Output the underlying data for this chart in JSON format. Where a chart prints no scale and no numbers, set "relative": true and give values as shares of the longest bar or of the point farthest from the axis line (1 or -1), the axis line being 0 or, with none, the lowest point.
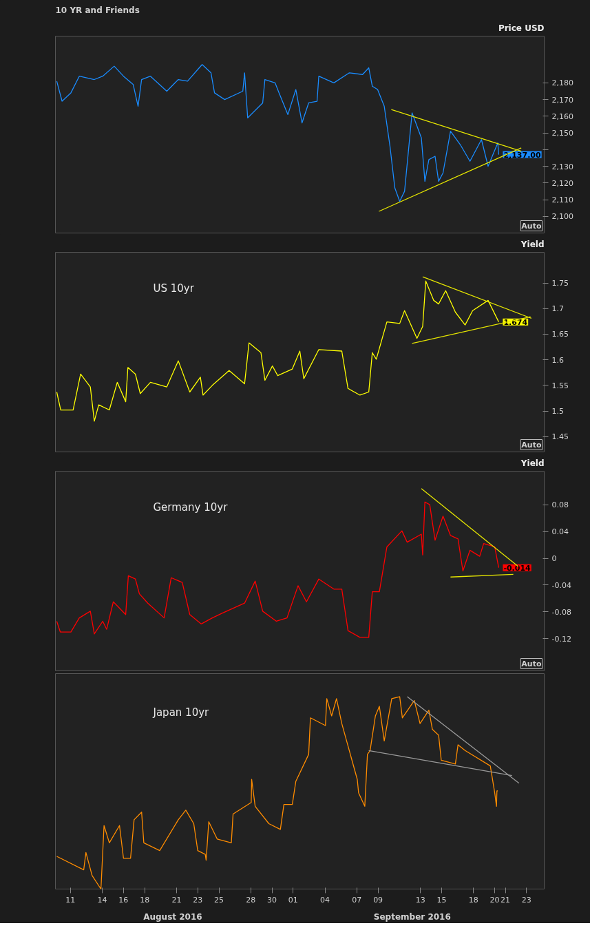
{
  "chart_data": [
    {
      "type": "line",
      "title": "10 YR and Friends",
      "ylabel": "Price USD",
      "xlim": [
        "2016-08-09T14:00",
        "2016-09-24T16:00"
      ],
      "ylim": [
        2090,
        2208
      ],
      "tick_labels": "y",
      "yticks": [
        {
          "value": 2100,
          "label": "2,100"
        },
        {
          "value": 2110,
          "label": "2,110"
        },
        {
          "value": 2120,
          "label": "2,120"
        },
        {
          "value": 2130,
          "label": "2,130"
        },
        {
          "value": 2140,
          "label": null
        },
        {
          "value": 2150,
          "label": "2,150"
        },
        {
          "value": 2160,
          "label": "2,160"
        },
        {
          "value": 2170,
          "label": "2,170"
        },
        {
          "value": 2180,
          "label": "2,180"
        }
      ],
      "annotations": [
        {
          "text": "2,137.00",
          "x": "2016-09-20T09:00",
          "y": 2137
        },
        "Auto"
      ],
      "series": [
        {
          "color": "#1a8cff",
          "x": [
            "2016-08-09T17:00",
            "2016-08-10T05:00",
            "2016-08-11T01:00",
            "2016-08-11T20:00",
            "2016-08-13T06:00",
            "2016-08-14T01:00",
            "2016-08-15T03:00",
            "2016-08-16T00:00",
            "2016-08-16T22:00",
            "2016-08-17T09:00",
            "2016-08-17T17:00",
            "2016-08-18T13:00",
            "2016-08-20T02:00",
            "2016-08-21T04:00",
            "2016-08-22T01:00",
            "2016-08-23T00:00",
            "2016-08-23T10:00",
            "2016-08-24T06:00",
            "2016-08-24T14:00",
            "2016-08-25T13:00",
            "2016-08-27T06:00",
            "2016-08-27T10:00",
            "2016-08-27T17:00",
            "2016-08-29T03:00",
            "2016-08-29T08:00",
            "2016-08-30T07:00",
            "2016-08-30T16:00",
            "2016-08-31T12:00",
            "2016-09-01T06:00",
            "2016-09-01T20:00",
            "2016-09-02T11:00",
            "2016-09-03T06:00",
            "2016-09-03T10:00",
            "2016-09-04T20:00",
            "2016-09-06T07:00",
            "2016-09-07T13:00",
            "2016-09-08T03:00",
            "2016-09-08T11:00",
            "2016-09-08T23:00",
            "2016-09-09T14:00",
            "2016-09-10T03:00",
            "2016-09-10T14:00",
            "2016-09-11T01:00",
            "2016-09-11T12:00",
            "2016-09-12T05:00",
            "2016-09-13T02:00",
            "2016-09-13T10:00",
            "2016-09-13T19:00",
            "2016-09-14T09:00",
            "2016-09-14T17:00",
            "2016-09-15T03:00",
            "2016-09-15T20:00",
            "2016-09-16T18:00",
            "2016-09-17T16:00",
            "2016-09-18T18:00",
            "2016-09-19T09:00",
            "2016-09-20T07:00",
            "2016-09-20T09:00"
          ],
          "values": [
            2181,
            2169,
            2174,
            2184,
            2182,
            2184,
            2190,
            2184,
            2179,
            2166,
            2182,
            2184,
            2175,
            2182,
            2181,
            2188,
            2191,
            2186,
            2174,
            2170,
            2175,
            2186,
            2159,
            2168,
            2182,
            2180,
            2174,
            2161,
            2176,
            2156,
            2168,
            2169,
            2184,
            2180,
            2186,
            2185,
            2189,
            2178,
            2176,
            2166,
            2142,
            2117,
            2109,
            2115,
            2162,
            2147,
            2121,
            2134,
            2136,
            2121,
            2126,
            2151,
            2143,
            2133,
            2146,
            2130,
            2144,
            2137
          ]
        },
        {
          "color": "#e6e600",
          "x": [
            "2016-09-10T06:00",
            "2016-09-22T12:00"
          ],
          "values": [
            2164,
            2139
          ]
        },
        {
          "color": "#e6e600",
          "x": [
            "2016-09-09T02:00",
            "2016-09-22T12:00"
          ],
          "values": [
            2103,
            2141
          ]
        }
      ]
    },
    {
      "type": "line",
      "title": "US 10yr",
      "ylabel": "Yield",
      "xlim": [
        "2016-08-09T14:00",
        "2016-09-24T16:00"
      ],
      "ylim": [
        1.42,
        1.81
      ],
      "tick_labels": "y",
      "yticks": [
        1.45,
        1.5,
        1.55,
        1.6,
        1.65,
        1.7,
        1.75
      ],
      "annotations": [
        {
          "text": "1.674",
          "x": "2016-09-20T09:00",
          "y": 1.674
        },
        "Auto"
      ],
      "series": [
        {
          "color": "#ffff00",
          "x": [
            "2016-08-09T17:00",
            "2016-08-10T02:00",
            "2016-08-11T06:00",
            "2016-08-11T23:00",
            "2016-08-12T21:00",
            "2016-08-13T06:00",
            "2016-08-13T16:00",
            "2016-08-14T16:00",
            "2016-08-15T10:00",
            "2016-08-16T05:00",
            "2016-08-16T10:00",
            "2016-08-17T03:00",
            "2016-08-17T14:00",
            "2016-08-18T13:00",
            "2016-08-20T02:00",
            "2016-08-21T04:00",
            "2016-08-22T06:00",
            "2016-08-23T06:00",
            "2016-08-23T12:00",
            "2016-08-24T09:00",
            "2016-08-25T23:00",
            "2016-08-27T10:00",
            "2016-08-27T20:00",
            "2016-08-28T23:00",
            "2016-08-29T08:00",
            "2016-08-30T01:00",
            "2016-08-30T13:00",
            "2016-08-31T22:00",
            "2016-09-01T15:00",
            "2016-09-02T00:00",
            "2016-09-03T10:00",
            "2016-09-05T14:00",
            "2016-09-06T04:00",
            "2016-09-07T07:00",
            "2016-09-08T03:00",
            "2016-09-08T11:00",
            "2016-09-08T20:00",
            "2016-09-09T20:00",
            "2016-09-11T01:00",
            "2016-09-11T12:00",
            "2016-09-12T16:00",
            "2016-09-13T05:00",
            "2016-09-13T12:00",
            "2016-09-14T06:00",
            "2016-09-14T17:00",
            "2016-09-15T09:00",
            "2016-09-16T07:00",
            "2016-09-17T05:00",
            "2016-09-17T22:00",
            "2016-09-19T09:00",
            "2016-09-20T09:00"
          ],
          "values": [
            1.537,
            1.502,
            1.502,
            1.572,
            1.547,
            1.48,
            1.512,
            1.502,
            1.556,
            1.518,
            1.585,
            1.572,
            1.534,
            1.556,
            1.547,
            1.598,
            1.537,
            1.566,
            1.531,
            1.55,
            1.579,
            1.553,
            1.633,
            1.614,
            1.56,
            1.588,
            1.569,
            1.582,
            1.617,
            1.563,
            1.62,
            1.617,
            1.544,
            1.531,
            1.537,
            1.614,
            1.601,
            1.674,
            1.671,
            1.696,
            1.642,
            1.665,
            1.754,
            1.716,
            1.709,
            1.735,
            1.693,
            1.668,
            1.696,
            1.716,
            1.674
          ]
        },
        {
          "color": "#e6e600",
          "x": [
            "2016-09-13T05:00",
            "2016-09-23T11:00"
          ],
          "values": [
            1.762,
            1.681
          ]
        },
        {
          "color": "#e6e600",
          "x": [
            "2016-09-12T05:00",
            "2016-09-23T09:00"
          ],
          "values": [
            1.632,
            1.684
          ]
        }
      ]
    },
    {
      "type": "line",
      "title": "Germany 10yr",
      "ylabel": "Yield",
      "xlim": [
        "2016-08-09T14:00",
        "2016-09-24T16:00"
      ],
      "ylim": [
        -0.168,
        0.13
      ],
      "tick_labels": "y",
      "yticks": [
        -0.12,
        -0.08,
        -0.04,
        0,
        0.04,
        0.08
      ],
      "annotations": [
        {
          "text": "-0.014",
          "x": "2016-09-20T09:00",
          "y": -0.014
        },
        "Auto"
      ],
      "series": [
        {
          "color": "#ff0000",
          "x": [
            "2016-08-09T17:00",
            "2016-08-10T01:00",
            "2016-08-11T01:00",
            "2016-08-11T20:00",
            "2016-08-12T21:00",
            "2016-08-13T06:00",
            "2016-08-14T01:00",
            "2016-08-14T10:00",
            "2016-08-15T01:00",
            "2016-08-16T05:00",
            "2016-08-16T11:00",
            "2016-08-17T03:00",
            "2016-08-17T12:00",
            "2016-08-18T07:00",
            "2016-08-19T20:00",
            "2016-08-20T12:00",
            "2016-08-21T13:00",
            "2016-08-22T06:00",
            "2016-08-23T08:00",
            "2016-08-24T09:00",
            "2016-08-25T07:00",
            "2016-08-27T10:00",
            "2016-08-28T10:00",
            "2016-08-29T03:00",
            "2016-08-30T10:00",
            "2016-08-31T10:00",
            "2016-09-01T11:00",
            "2016-09-02T06:00",
            "2016-09-03T10:00",
            "2016-09-04T20:00",
            "2016-09-05T14:00",
            "2016-09-06T04:00",
            "2016-09-07T07:00",
            "2016-09-08T03:00",
            "2016-09-08T11:00",
            "2016-09-09T03:00",
            "2016-09-09T20:00",
            "2016-09-11T06:00",
            "2016-09-11T18:00",
            "2016-09-13T02:00",
            "2016-09-13T05:00",
            "2016-09-13T10:00",
            "2016-09-13T21:00",
            "2016-09-14T09:00",
            "2016-09-15T03:00",
            "2016-09-15T20:00",
            "2016-09-16T13:00",
            "2016-09-17T00:00",
            "2016-09-17T16:00",
            "2016-09-18T14:00",
            "2016-09-18T23:00",
            "2016-09-20T00:00",
            "2016-09-20T09:00"
          ],
          "values": [
            -0.094,
            -0.11,
            -0.11,
            -0.089,
            -0.079,
            -0.113,
            -0.094,
            -0.106,
            -0.065,
            -0.084,
            -0.026,
            -0.031,
            -0.053,
            -0.067,
            -0.089,
            -0.029,
            -0.036,
            -0.084,
            -0.098,
            -0.089,
            -0.082,
            -0.067,
            -0.034,
            -0.079,
            -0.094,
            -0.089,
            -0.041,
            -0.065,
            -0.031,
            -0.046,
            -0.046,
            -0.108,
            -0.118,
            -0.118,
            -0.05,
            -0.05,
            0.017,
            0.041,
            0.024,
            0.036,
            0.005,
            0.084,
            0.08,
            0.027,
            0.063,
            0.034,
            0.029,
            -0.019,
            0.012,
            0.003,
            0.022,
            0.017,
            -0.014
          ]
        },
        {
          "color": "#e6e600",
          "x": [
            "2016-09-13T02:00",
            "2016-09-22T05:00"
          ],
          "values": [
            0.104,
            -0.012
          ]
        },
        {
          "color": "#e6e600",
          "x": [
            "2016-09-15T20:00",
            "2016-09-21T18:00"
          ],
          "values": [
            -0.028,
            -0.024
          ]
        }
      ]
    },
    {
      "type": "line",
      "title": "Japan 10yr",
      "relative": true,
      "xlim": [
        "2016-08-09T14:00",
        "2016-09-24T16:00"
      ],
      "tick_labels": "x",
      "xticks": [
        {
          "value": "2016-08-11",
          "label": "11"
        },
        {
          "value": "2016-08-14",
          "label": "14"
        },
        {
          "value": "2016-08-16",
          "label": "16"
        },
        {
          "value": "2016-08-18",
          "label": "18"
        },
        {
          "value": "2016-08-21",
          "label": "21"
        },
        {
          "value": "2016-08-23",
          "label": "23"
        },
        {
          "value": "2016-08-25",
          "label": "25"
        },
        {
          "value": "2016-08-28",
          "label": "28"
        },
        {
          "value": "2016-08-30",
          "label": "30"
        },
        {
          "value": "2016-09-01",
          "label": "01"
        },
        {
          "value": "2016-09-04",
          "label": "04"
        },
        {
          "value": "2016-09-07",
          "label": "07"
        },
        {
          "value": "2016-09-09",
          "label": "09"
        },
        {
          "value": "2016-09-13",
          "label": "13"
        },
        {
          "value": "2016-09-15",
          "label": "15"
        },
        {
          "value": "2016-09-18",
          "label": "18"
        },
        {
          "value": "2016-09-20",
          "label": "20"
        },
        {
          "value": "2016-09-21",
          "label": "21"
        },
        {
          "value": "2016-09-23",
          "label": "23"
        }
      ],
      "annotations": [
        "August 2016",
        "September 2016"
      ],
      "series": [
        {
          "color": "#ff8c00",
          "x": [
            "2016-08-09T17:00",
            "2016-08-12T06:00",
            "2016-08-12T11:00",
            "2016-08-13T01:00",
            "2016-08-13T21:00",
            "2016-08-14T04:00",
            "2016-08-14T16:00",
            "2016-08-15T15:00",
            "2016-08-16T00:00",
            "2016-08-16T16:00",
            "2016-08-17T00:00",
            "2016-08-17T17:00",
            "2016-08-17T22:00",
            "2016-08-19T10:00",
            "2016-08-21T04:00",
            "2016-08-21T21:00",
            "2016-08-22T15:00",
            "2016-08-23T00:00",
            "2016-08-23T17:00",
            "2016-08-23T19:00",
            "2016-08-24T01:00",
            "2016-08-24T20:00",
            "2016-08-26T04:00",
            "2016-08-26T08:00",
            "2016-08-28T01:00",
            "2016-08-28T02:00",
            "2016-08-28T10:00",
            "2016-08-29T17:00",
            "2016-08-30T19:00",
            "2016-08-31T03:00",
            "2016-08-31T22:00",
            "2016-09-01T06:00",
            "2016-09-02T11:00",
            "2016-09-02T15:00",
            "2016-09-04T01:00",
            "2016-09-04T04:00",
            "2016-09-04T15:00",
            "2016-09-05T02:00",
            "2016-09-05T14:00",
            "2016-09-07T01:00",
            "2016-09-07T04:00",
            "2016-09-07T18:00",
            "2016-09-08T00:00",
            "2016-09-08T06:00",
            "2016-09-08T18:00",
            "2016-09-09T03:00",
            "2016-09-09T14:00",
            "2016-09-10T07:00",
            "2016-09-11T01:00",
            "2016-09-11T07:00",
            "2016-09-12T10:00",
            "2016-09-12T23:00",
            "2016-09-13T19:00",
            "2016-09-14T03:00",
            "2016-09-14T17:00",
            "2016-09-14T23:00",
            "2016-09-16T07:00",
            "2016-09-16T13:00",
            "2016-09-17T05:00",
            "2016-09-19T14:00",
            "2016-09-20T00:00",
            "2016-09-20T04:00",
            "2016-09-20T05:00",
            "2016-09-20T07:00"
          ],
          "values": [
            0.17,
            0.1,
            0.19,
            0.07,
            0,
            0.33,
            0.24,
            0.33,
            0.16,
            0.16,
            0.36,
            0.4,
            0.24,
            0.2,
            0.36,
            0.41,
            0.34,
            0.2,
            0.18,
            0.15,
            0.35,
            0.26,
            0.24,
            0.39,
            0.45,
            0.57,
            0.43,
            0.34,
            0.31,
            0.44,
            0.44,
            0.56,
            0.7,
            0.89,
            0.85,
            0.99,
            0.9,
            0.99,
            0.86,
            0.57,
            0.5,
            0.43,
            0.7,
            0.72,
            0.9,
            0.95,
            0.77,
            0.99,
            1,
            0.89,
            0.98,
            0.86,
            0.93,
            0.83,
            0.8,
            0.67,
            0.65,
            0.75,
            0.72,
            0.64,
            0.5,
            0.43,
            0.51,
            0.51
          ]
        },
        {
          "color": "#9a9a9a",
          "x": [
            "2016-09-11T18:00",
            "2016-09-22T07:00"
          ],
          "values": [
            1,
            0.55
          ]
        },
        {
          "color": "#9a9a9a",
          "x": [
            "2016-09-08T03:00",
            "2016-09-21T15:00"
          ],
          "values": [
            0.72,
            0.59
          ]
        }
      ]
    }
  ]
}
